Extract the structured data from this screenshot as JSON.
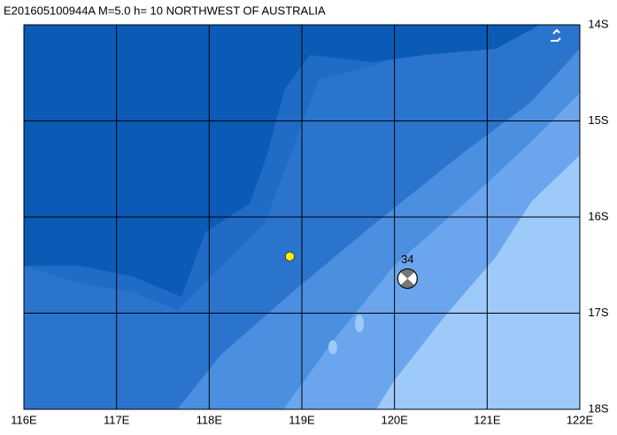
{
  "title": "E201605100944A  M=5.0  h= 10 NORTHWEST OF AUSTRALIA",
  "lonlim": [
    116,
    122
  ],
  "latlim": [
    14,
    18
  ],
  "lonticks": [
    {
      "value": 116,
      "label": "116E"
    },
    {
      "value": 117,
      "label": "117E"
    },
    {
      "value": 118,
      "label": "118E"
    },
    {
      "value": 119,
      "label": "119E"
    },
    {
      "value": 120,
      "label": "120E"
    },
    {
      "value": 121,
      "label": "121E"
    },
    {
      "value": 122,
      "label": "122E"
    }
  ],
  "latticks": [
    {
      "value": 14,
      "label": "14S"
    },
    {
      "value": 15,
      "label": "15S"
    },
    {
      "value": 16,
      "label": "16S"
    },
    {
      "value": 17,
      "label": "17S"
    },
    {
      "value": 18,
      "label": "18S"
    }
  ],
  "markers": [
    {
      "type": "epicenter",
      "lon": 118.87,
      "lat": 16.41,
      "color": "#ffee00"
    },
    {
      "type": "focal-mechanism",
      "lon": 120.14,
      "lat": 16.64,
      "label": "34"
    }
  ]
}
